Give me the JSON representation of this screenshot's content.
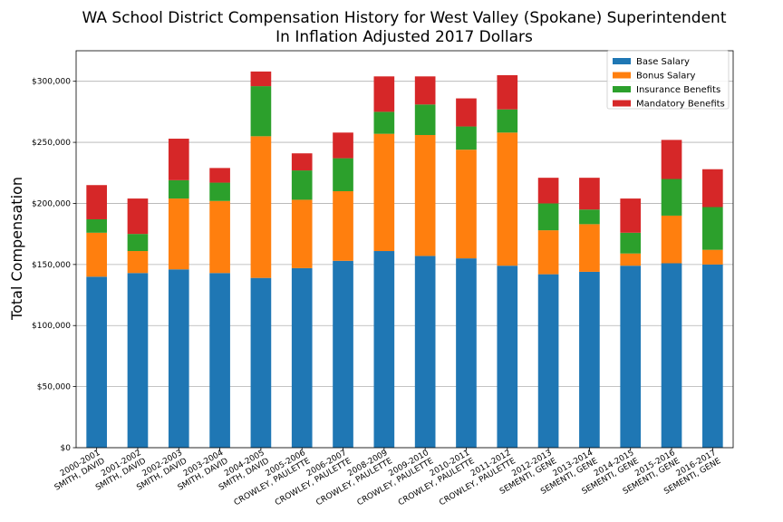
{
  "chart_data": {
    "type": "bar",
    "stacked": true,
    "title": "WA School District Compensation History for West Valley (Spokane) Superintendent",
    "subtitle": "In Inflation Adjusted 2017 Dollars",
    "xlabel": "",
    "ylabel": "Total Compensation",
    "ylim": [
      0,
      325000
    ],
    "yticks": [
      "$0",
      "$50,000",
      "$100,000",
      "$150,000",
      "$200,000",
      "$250,000",
      "$300,000"
    ],
    "ytick_values": [
      0,
      50000,
      100000,
      150000,
      200000,
      250000,
      300000
    ],
    "grid": "horizontal",
    "legend_position": "top-right",
    "categories": [
      [
        "2000-2001",
        "SMITH, DAVID"
      ],
      [
        "2001-2002",
        "SMITH, DAVID"
      ],
      [
        "2002-2003",
        "SMITH, DAVID"
      ],
      [
        "2003-2004",
        "SMITH, DAVID"
      ],
      [
        "2004-2005",
        "SMITH, DAVID"
      ],
      [
        "2005-2006",
        "CROWLEY, PAULETTE"
      ],
      [
        "2006-2007",
        "CROWLEY, PAULETTE"
      ],
      [
        "2008-2009",
        "CROWLEY, PAULETTE"
      ],
      [
        "2009-2010",
        "CROWLEY, PAULETTE"
      ],
      [
        "2010-2011",
        "CROWLEY, PAULETTE"
      ],
      [
        "2011-2012",
        "CROWLEY, PAULETTE"
      ],
      [
        "2012-2013",
        "SEMENTI, GENE"
      ],
      [
        "2013-2014",
        "SEMENTI, GENE"
      ],
      [
        "2014-2015",
        "SEMENTI, GENE"
      ],
      [
        "2015-2016",
        "SEMENTI, GENE"
      ],
      [
        "2016-2017",
        "SEMENTI, GENE"
      ]
    ],
    "series": [
      {
        "name": "Base Salary",
        "color": "#1f77b4",
        "values": [
          140000,
          143000,
          146000,
          143000,
          139000,
          147000,
          153000,
          161000,
          157000,
          155000,
          149000,
          142000,
          144000,
          149000,
          151000,
          150000
        ]
      },
      {
        "name": "Bonus Salary",
        "color": "#ff7f0e",
        "values": [
          36000,
          18000,
          58000,
          59000,
          116000,
          56000,
          57000,
          96000,
          99000,
          89000,
          109000,
          36000,
          39000,
          10000,
          39000,
          12000
        ]
      },
      {
        "name": "Insurance Benefits",
        "color": "#2ca02c",
        "values": [
          11000,
          14000,
          15000,
          15000,
          41000,
          24000,
          27000,
          18000,
          25000,
          19000,
          19000,
          22000,
          12000,
          17000,
          30000,
          35000
        ]
      },
      {
        "name": "Mandatory Benefits",
        "color": "#d62728",
        "values": [
          28000,
          29000,
          34000,
          12000,
          12000,
          14000,
          21000,
          29000,
          23000,
          23000,
          28000,
          21000,
          26000,
          28000,
          32000,
          31000
        ]
      }
    ]
  }
}
